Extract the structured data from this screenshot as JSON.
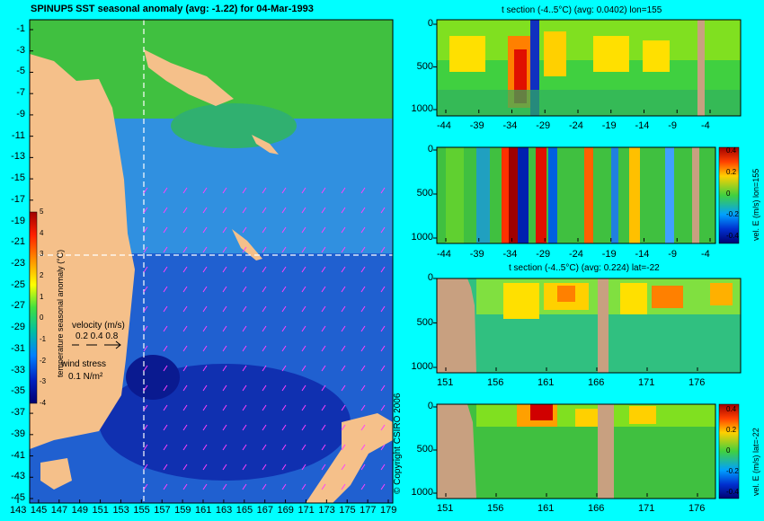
{
  "map": {
    "title": "SPINUP5 SST seasonal anomaly (avg: -1.22) for 04-Mar-1993",
    "lat_labels": [
      "-1",
      "-3",
      "-5",
      "-7",
      "-9",
      "-11",
      "-13",
      "-15",
      "-17",
      "-19",
      "-21",
      "-23",
      "-25",
      "-27",
      "-29",
      "-31",
      "-33",
      "-35",
      "-37",
      "-39",
      "-41",
      "-43",
      "-45"
    ],
    "lon_labels": [
      "143",
      "145",
      "147",
      "149",
      "151",
      "153",
      "155",
      "157",
      "159",
      "161",
      "163",
      "165",
      "167",
      "169",
      "171",
      "173",
      "175",
      "177",
      "179"
    ],
    "colorbar": {
      "label": "temperature seasonal anomaly (°C)",
      "ticks": [
        "5",
        "4",
        "3",
        "2",
        "1",
        "0",
        "-1",
        "-2",
        "-3",
        "-4"
      ]
    },
    "velocity_legend": {
      "title": "velocity (m/s)",
      "values": "0.2 0.4 0.8"
    },
    "wind_legend": {
      "title": "wind stress",
      "value": "0.1 N/m²"
    },
    "section_lat": -22,
    "section_lon": 155,
    "colors": {
      "land": "#f5c08a",
      "background": "#00ffff"
    }
  },
  "copyright": "© Copyright CSIRO 2006",
  "panel1": {
    "title": "t section (-4..5°C) (avg: 0.0402) lon=155",
    "x_ticks": [
      "-44",
      "-39",
      "-34",
      "-29",
      "-24",
      "-19",
      "-14",
      "-9",
      "-4"
    ],
    "y_ticks": [
      "0",
      "500",
      "1000"
    ]
  },
  "panel2": {
    "x_ticks": [
      "-44",
      "-39",
      "-34",
      "-29",
      "-24",
      "-19",
      "-14",
      "-9",
      "-4"
    ],
    "y_ticks": [
      "0",
      "500",
      "1000"
    ],
    "colorbar_ticks": [
      "0.4",
      "0.2",
      "0",
      "-0.2",
      "-0.4"
    ],
    "colorbar_label": "vel. E (m/s) lon=155"
  },
  "panel3": {
    "title": "t section (-4..5°C) (avg: 0.224) lat=-22",
    "x_ticks": [
      "151",
      "156",
      "161",
      "166",
      "171",
      "176"
    ],
    "y_ticks": [
      "0",
      "500",
      "1000"
    ]
  },
  "panel4": {
    "x_ticks": [
      "151",
      "156",
      "161",
      "166",
      "171",
      "176"
    ],
    "y_ticks": [
      "0",
      "500",
      "1000"
    ],
    "colorbar_ticks": [
      "0.4",
      "0.2",
      "0",
      "-0.2",
      "-0.4"
    ],
    "colorbar_label": "vel. E (m/s) lat=-22"
  },
  "chart_data": [
    {
      "type": "heatmap",
      "title": "SPINUP5 SST seasonal anomaly (avg: -1.22) for 04-Mar-1993",
      "xlim": [
        143,
        180
      ],
      "ylim": [
        -45,
        0
      ],
      "clim": [
        -4,
        5
      ],
      "units": "°C"
    },
    {
      "type": "heatmap",
      "title": "t section (-4..5°C) (avg: 0.0402) lon=155",
      "xlim": [
        -45,
        -1
      ],
      "ylim": [
        1000,
        0
      ],
      "clim": [
        -4,
        5
      ]
    },
    {
      "type": "heatmap",
      "title": "",
      "xlim": [
        -45,
        -1
      ],
      "ylim": [
        1000,
        0
      ],
      "clim": [
        -0.4,
        0.4
      ],
      "units": "m/s"
    },
    {
      "type": "heatmap",
      "title": "t section (-4..5°C) (avg: 0.224) lat=-22",
      "xlim": [
        150,
        180
      ],
      "ylim": [
        1000,
        0
      ],
      "clim": [
        -4,
        5
      ]
    },
    {
      "type": "heatmap",
      "title": "",
      "xlim": [
        150,
        180
      ],
      "ylim": [
        1000,
        0
      ],
      "clim": [
        -0.4,
        0.4
      ],
      "units": "m/s"
    }
  ]
}
